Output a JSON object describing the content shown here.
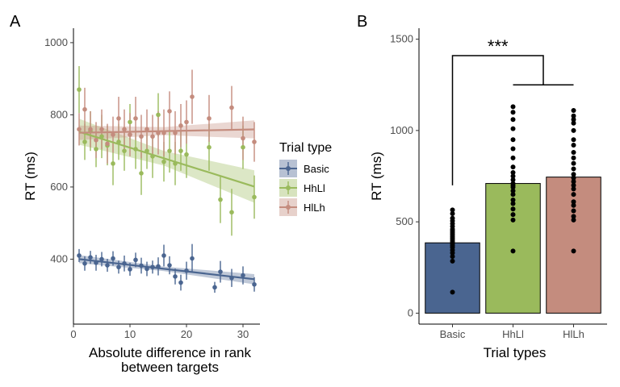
{
  "chart_data": [
    {
      "panel": "A",
      "type": "scatter",
      "xlabel_lines": [
        "Absolute difference in rank",
        "between targets"
      ],
      "ylabel": "RT (ms)",
      "xlim": [
        0,
        33
      ],
      "ylim": [
        220,
        1040
      ],
      "x_ticks": [
        0,
        10,
        20,
        30
      ],
      "y_ticks": [
        400,
        600,
        800,
        1000
      ],
      "grid": false,
      "legend": {
        "title": "Trial type",
        "placement": "right",
        "entries": [
          "Basic",
          "HhLl",
          "HlLh"
        ]
      },
      "colors": {
        "Basic": "#4a6590",
        "HhLl": "#9aba5c",
        "HlLh": "#c48c7e"
      },
      "series": [
        {
          "name": "Basic",
          "points": [
            {
              "x": 1,
              "y": 410,
              "err": 18
            },
            {
              "x": 2,
              "y": 388,
              "err": 20
            },
            {
              "x": 3,
              "y": 405,
              "err": 18
            },
            {
              "x": 4,
              "y": 390,
              "err": 22
            },
            {
              "x": 5,
              "y": 400,
              "err": 20
            },
            {
              "x": 6,
              "y": 383,
              "err": 18
            },
            {
              "x": 7,
              "y": 402,
              "err": 20
            },
            {
              "x": 8,
              "y": 378,
              "err": 18
            },
            {
              "x": 9,
              "y": 388,
              "err": 22
            },
            {
              "x": 10,
              "y": 372,
              "err": 18
            },
            {
              "x": 11,
              "y": 398,
              "err": 20
            },
            {
              "x": 12,
              "y": 382,
              "err": 22
            },
            {
              "x": 13,
              "y": 373,
              "err": 20
            },
            {
              "x": 14,
              "y": 378,
              "err": 18
            },
            {
              "x": 15,
              "y": 380,
              "err": 25
            },
            {
              "x": 16,
              "y": 410,
              "err": 30
            },
            {
              "x": 17,
              "y": 383,
              "err": 25
            },
            {
              "x": 18,
              "y": 352,
              "err": 22
            },
            {
              "x": 19,
              "y": 335,
              "err": 22
            },
            {
              "x": 20,
              "y": 368,
              "err": 25
            },
            {
              "x": 21,
              "y": 402,
              "err": 40
            },
            {
              "x": 25,
              "y": 322,
              "err": 15
            },
            {
              "x": 26,
              "y": 365,
              "err": 30
            },
            {
              "x": 28,
              "y": 348,
              "err": 25
            },
            {
              "x": 30,
              "y": 355,
              "err": 25
            },
            {
              "x": 32,
              "y": 330,
              "err": 20
            }
          ],
          "fit": {
            "y_at_0": 402,
            "slope": -1.8,
            "band": 14
          }
        },
        {
          "name": "HhLl",
          "points": [
            {
              "x": 1,
              "y": 870,
              "err": 65
            },
            {
              "x": 2,
              "y": 725,
              "err": 50
            },
            {
              "x": 3,
              "y": 755,
              "err": 55
            },
            {
              "x": 4,
              "y": 705,
              "err": 50
            },
            {
              "x": 5,
              "y": 740,
              "err": 60
            },
            {
              "x": 6,
              "y": 715,
              "err": 55
            },
            {
              "x": 7,
              "y": 665,
              "err": 60
            },
            {
              "x": 8,
              "y": 725,
              "err": 50
            },
            {
              "x": 9,
              "y": 700,
              "err": 55
            },
            {
              "x": 10,
              "y": 780,
              "err": 50
            },
            {
              "x": 11,
              "y": 705,
              "err": 55
            },
            {
              "x": 12,
              "y": 638,
              "err": 60
            },
            {
              "x": 13,
              "y": 700,
              "err": 50
            },
            {
              "x": 14,
              "y": 685,
              "err": 60
            },
            {
              "x": 15,
              "y": 800,
              "err": 60
            },
            {
              "x": 16,
              "y": 670,
              "err": 55
            },
            {
              "x": 17,
              "y": 700,
              "err": 60
            },
            {
              "x": 18,
              "y": 665,
              "err": 60
            },
            {
              "x": 19,
              "y": 700,
              "err": 55
            },
            {
              "x": 20,
              "y": 690,
              "err": 65
            },
            {
              "x": 24,
              "y": 710,
              "err": 65
            },
            {
              "x": 26,
              "y": 565,
              "err": 65
            },
            {
              "x": 28,
              "y": 530,
              "err": 65
            },
            {
              "x": 30,
              "y": 710,
              "err": 60
            },
            {
              "x": 32,
              "y": 572,
              "err": 60
            }
          ],
          "fit": {
            "y_at_0": 758,
            "slope": -4.9,
            "band": 45
          }
        },
        {
          "name": "HlLh",
          "points": [
            {
              "x": 1,
              "y": 760,
              "err": 45
            },
            {
              "x": 2,
              "y": 815,
              "err": 60
            },
            {
              "x": 3,
              "y": 760,
              "err": 50
            },
            {
              "x": 4,
              "y": 730,
              "err": 50
            },
            {
              "x": 5,
              "y": 760,
              "err": 55
            },
            {
              "x": 6,
              "y": 720,
              "err": 55
            },
            {
              "x": 7,
              "y": 745,
              "err": 50
            },
            {
              "x": 8,
              "y": 790,
              "err": 60
            },
            {
              "x": 9,
              "y": 760,
              "err": 55
            },
            {
              "x": 10,
              "y": 745,
              "err": 60
            },
            {
              "x": 11,
              "y": 790,
              "err": 60
            },
            {
              "x": 12,
              "y": 740,
              "err": 60
            },
            {
              "x": 13,
              "y": 760,
              "err": 55
            },
            {
              "x": 14,
              "y": 740,
              "err": 60
            },
            {
              "x": 15,
              "y": 750,
              "err": 60
            },
            {
              "x": 16,
              "y": 750,
              "err": 65
            },
            {
              "x": 17,
              "y": 810,
              "err": 55
            },
            {
              "x": 18,
              "y": 750,
              "err": 60
            },
            {
              "x": 19,
              "y": 770,
              "err": 60
            },
            {
              "x": 20,
              "y": 780,
              "err": 60
            },
            {
              "x": 21,
              "y": 850,
              "err": 75
            },
            {
              "x": 24,
              "y": 790,
              "err": 65
            },
            {
              "x": 28,
              "y": 820,
              "err": 60
            },
            {
              "x": 30,
              "y": 735,
              "err": 60
            },
            {
              "x": 32,
              "y": 725,
              "err": 55
            }
          ],
          "fit": {
            "y_at_0": 750,
            "slope": 0.3,
            "band": 25
          }
        }
      ]
    },
    {
      "panel": "B",
      "type": "bar",
      "xlabel": "Trial types",
      "ylabel": "RT (ms)",
      "categories": [
        "Basic",
        "HhLl",
        "HlLh"
      ],
      "values": [
        385,
        710,
        745
      ],
      "ylim": [
        -60,
        1560
      ],
      "y_ticks": [
        0,
        500,
        1000,
        1500
      ],
      "grid": false,
      "colors": [
        "#4a6590",
        "#9aba5c",
        "#c48c7e"
      ],
      "individual_points": [
        [
          565,
          545,
          520,
          505,
          490,
          475,
          460,
          450,
          440,
          430,
          420,
          410,
          400,
          390,
          380,
          370,
          360,
          345,
          330,
          310,
          285,
          115
        ],
        [
          1130,
          1100,
          1060,
          1010,
          950,
          900,
          850,
          800,
          770,
          750,
          730,
          710,
          700,
          690,
          670,
          650,
          620,
          600,
          570,
          540,
          510,
          340
        ],
        [
          1110,
          1080,
          1060,
          1040,
          1000,
          950,
          920,
          880,
          850,
          820,
          790,
          760,
          740,
          720,
          700,
          680,
          650,
          610,
          590,
          560,
          530,
          510,
          340
        ]
      ],
      "significance": {
        "label": "***",
        "left_y": 700,
        "right_y": 1250,
        "top_y": 1410
      }
    }
  ],
  "panels": {
    "a_label": "A",
    "b_label": "B"
  }
}
